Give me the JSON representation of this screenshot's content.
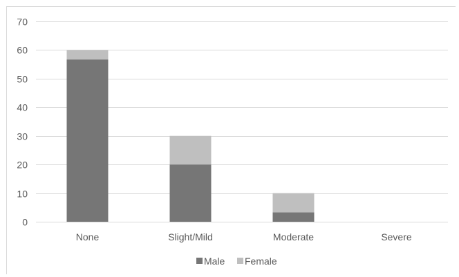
{
  "chart_data": {
    "type": "bar",
    "stacked": true,
    "categories": [
      "None",
      "Slight/Mild",
      "Moderate",
      "Severe"
    ],
    "series": [
      {
        "name": "Male",
        "values": [
          56.7,
          20,
          3.3,
          0
        ],
        "color": "#767676"
      },
      {
        "name": "Female",
        "values": [
          3.3,
          10,
          6.7,
          0
        ],
        "color": "#bfbfbf"
      }
    ],
    "ylim": [
      0,
      70
    ],
    "yticks": [
      0,
      10,
      20,
      30,
      40,
      50,
      60,
      70
    ],
    "grid": true,
    "legend_position": "bottom",
    "title": "",
    "xlabel": "",
    "ylabel": ""
  }
}
